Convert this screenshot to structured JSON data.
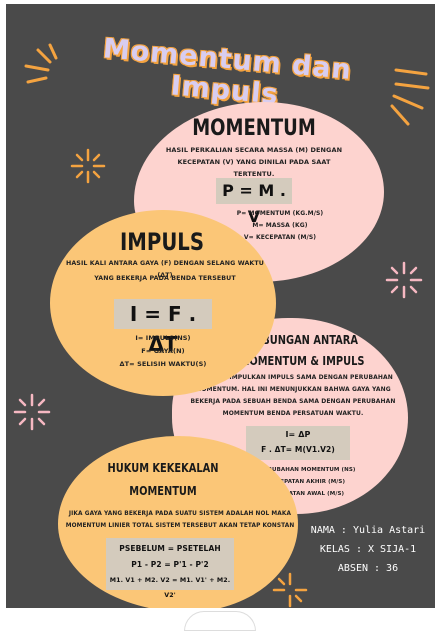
{
  "title": "Momentum dan Impuls",
  "momentum": {
    "heading": "MOMENTUM",
    "desc": [
      "HASIL PERKALIAN SECARA MASSA (M) DENGAN",
      "KECEPATAN (V) YANG DINILAI PADA SAAT TERTENTU."
    ],
    "formula": "P = M . V",
    "legend": [
      "P= MOMENTUM (KG.M/S)",
      "M= MASSA (KG)",
      "V= KECEPATAN (M/S)"
    ]
  },
  "impuls": {
    "heading": "IMPULS",
    "desc": [
      "HASIL KALI ANTARA GAYA (F) DENGAN SELANG WAKTU (ΔT)",
      "YANG BEKERJA PADA BENDA TERSEBUT"
    ],
    "formula": "I = F . ΔT",
    "legend": [
      "I= IMPULS(NS)",
      "F= GAYA(N)",
      "ΔT= SELISIH WAKTU(S)"
    ]
  },
  "hubungan": {
    "heading": [
      "HUBUNGAN ANTARA",
      "MOMENTUM &  IMPULS"
    ],
    "desc": [
      "DAPAT DISIMPULKAN IMPULS SAMA DENGAN PERUBAHAN",
      "MOMENTUM. HAL INI MENUNJUKKAN BAHWA GAYA YANG",
      "BEKERJA PADA SEBUAH BENDA SAMA DENGAN PERUBAHAN",
      "MOMENTUM BENDA PERSATUAN WAKTU."
    ],
    "formula": [
      "I= ΔP",
      "F . ΔT= M(V1.V2)"
    ],
    "legend": [
      "Δ P= PERUBAHAN MOMENTUM (NS)",
      "V1= KECEPATAN AKHIR (M/S)",
      "V2= KECEPATAN AWAL (M/S)"
    ]
  },
  "hukum": {
    "heading": [
      "HUKUM KEKEKALAN",
      "MOMENTUM"
    ],
    "desc": [
      "JIKA GAYA YANG BEKERJA PADA SUATU SISTEM ADALAH NOL MAKA",
      "MOMENTUM LINIER TOTAL SISTEM TERSEBUT AKAN TETAP KONSTAN"
    ],
    "formula": [
      "PSEBELUM = PSETELAH",
      "P1 - P2 = P'1 - P'2",
      "M1. V1 + M2. V2 = M1. V1' + M2. V2'"
    ]
  },
  "student": {
    "name": "NAMA : Yulia Astari",
    "class": "KELAS : X SIJA-1",
    "absen": "ABSEN : 36"
  },
  "colors": {
    "background": "#4a4a4a",
    "pink": "#fdd3cf",
    "orange": "#fbc677",
    "accent": "#f4a340",
    "title": "#d8cdf0"
  }
}
